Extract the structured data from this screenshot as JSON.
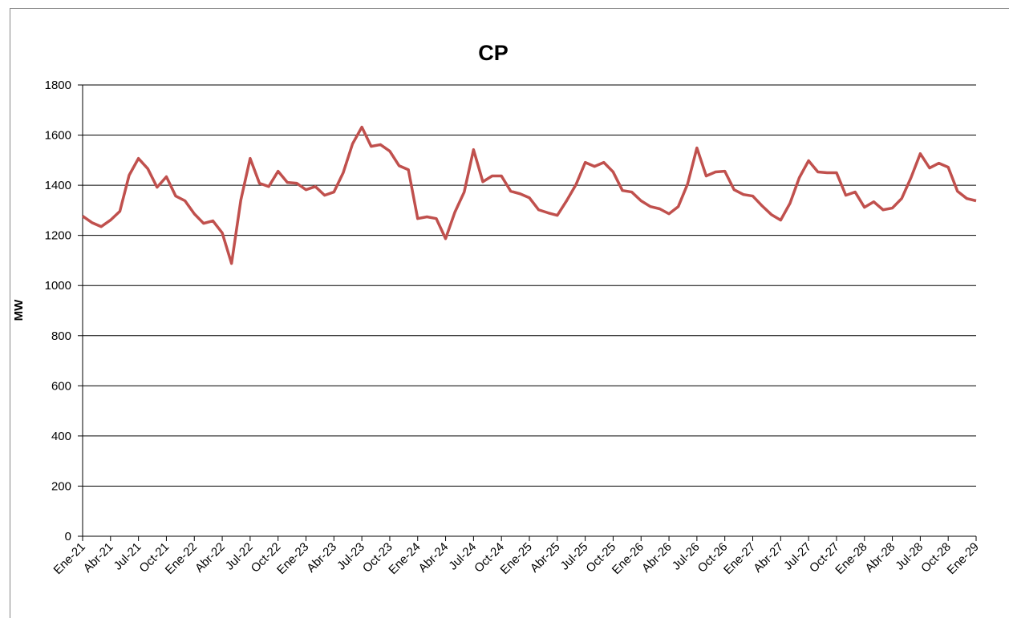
{
  "chart_data": {
    "type": "line",
    "title": "CP",
    "y_label": "MW",
    "categories": [
      "Ene-21",
      null,
      null,
      "Abr-21",
      null,
      null,
      "Jul-21",
      null,
      null,
      "Oct-21",
      null,
      null,
      "Ene-22",
      null,
      null,
      "Abr-22",
      null,
      null,
      "Jul-22",
      null,
      null,
      "Oct-22",
      null,
      null,
      "Ene-23",
      null,
      null,
      "Abr-23",
      null,
      null,
      "Jul-23",
      null,
      null,
      "Oct-23",
      null,
      null,
      "Ene-24",
      null,
      null,
      "Abr-24",
      null,
      null,
      "Jul-24",
      null,
      null,
      "Oct-24",
      null,
      null,
      "Ene-25",
      null,
      null,
      "Abr-25",
      null,
      null,
      "Jul-25",
      null,
      null,
      "Oct-25",
      null,
      null,
      "Ene-26",
      null,
      null,
      "Abr-26",
      null,
      null,
      "Jul-26",
      null,
      null,
      "Oct-26",
      null,
      null,
      "Ene-27",
      null,
      null,
      "Abr-27",
      null,
      null,
      "Jul-27",
      null,
      null,
      "Oct-27",
      null,
      null,
      "Ene-28",
      null,
      null,
      "Abr-28",
      null,
      null,
      "Jul-28",
      null,
      null,
      "Oct-28",
      null,
      null,
      "Ene-29"
    ],
    "series": [
      {
        "name": "CP",
        "color": "#c0504d",
        "values": [
          1277,
          1251,
          1235,
          1261,
          1296,
          1440,
          1507,
          1466,
          1392,
          1434,
          1357,
          1338,
          1286,
          1248,
          1258,
          1210,
          1088,
          1341,
          1507,
          1408,
          1395,
          1456,
          1411,
          1408,
          1382,
          1395,
          1360,
          1373,
          1450,
          1565,
          1632,
          1555,
          1562,
          1536,
          1478,
          1462,
          1267,
          1274,
          1267,
          1187,
          1293,
          1373,
          1542,
          1414,
          1437,
          1437,
          1376,
          1366,
          1350,
          1302,
          1290,
          1280,
          1338,
          1402,
          1491,
          1475,
          1491,
          1453,
          1379,
          1373,
          1338,
          1315,
          1306,
          1286,
          1315,
          1405,
          1549,
          1437,
          1453,
          1456,
          1382,
          1363,
          1357,
          1318,
          1283,
          1261,
          1328,
          1430,
          1498,
          1453,
          1450,
          1450,
          1360,
          1373,
          1312,
          1334,
          1302,
          1309,
          1347,
          1430,
          1526,
          1469,
          1488,
          1472,
          1376,
          1347,
          1338
        ]
      }
    ],
    "ylim": [
      0,
      1800
    ],
    "yticks": [
      0,
      200,
      400,
      600,
      800,
      1000,
      1200,
      1400,
      1600,
      1800
    ],
    "grid": true
  }
}
